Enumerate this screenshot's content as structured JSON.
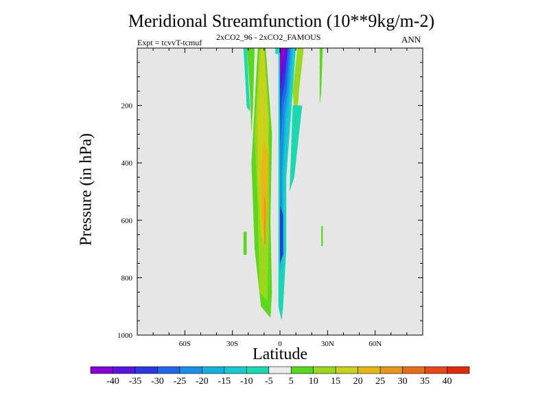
{
  "chart_data": {
    "type": "heatmap",
    "title": "Meridional Streamfunction (10**9kg/m-2)",
    "subtitle_left": "Expt = tcvvT-tcmuf",
    "subtitle_center": "2xCO2_96 - 2xCO2_FAMOUS",
    "subtitle_right": "ANN",
    "xlabel": "Latitude",
    "ylabel": "Pressure (in hPa)",
    "xlim": [
      -90,
      90
    ],
    "ylim": [
      0,
      1000
    ],
    "y_reversed": true,
    "x_ticks": [
      {
        "value": -60,
        "label": "60S"
      },
      {
        "value": -30,
        "label": "30S"
      },
      {
        "value": 0,
        "label": "0"
      },
      {
        "value": 30,
        "label": "30N"
      },
      {
        "value": 60,
        "label": "60N"
      }
    ],
    "y_ticks": [
      {
        "value": 200,
        "label": "200"
      },
      {
        "value": 400,
        "label": "400"
      },
      {
        "value": 600,
        "label": "600"
      },
      {
        "value": 800,
        "label": "800"
      },
      {
        "value": 1000,
        "label": "1000"
      }
    ],
    "background_color": "#e6e6e6",
    "colorbar": {
      "levels": [
        -40,
        -35,
        -30,
        -25,
        -20,
        -15,
        -10,
        -5,
        5,
        10,
        15,
        20,
        25,
        30,
        35,
        40
      ],
      "labels": [
        "-40",
        "-35",
        "-30",
        "-25",
        "-20",
        "-15",
        "-10",
        "-5",
        "5",
        "10",
        "15",
        "20",
        "25",
        "30",
        "35",
        "40"
      ],
      "colors": [
        "#8a00d4",
        "#5a14e0",
        "#2a3ae0",
        "#1f66e6",
        "#1a8ee6",
        "#16b0e0",
        "#1ac8d2",
        "#1ad8b0",
        "#ececec",
        "#5ad81e",
        "#9ad81e",
        "#c8d21a",
        "#e6b814",
        "#e6961a",
        "#e66e1a",
        "#e64a1a",
        "#e02a0a"
      ]
    },
    "regions": [
      {
        "name": "positive-cell-left",
        "level": 5,
        "points": [
          [
            -14,
            0
          ],
          [
            -9,
            0
          ],
          [
            -5,
            300
          ],
          [
            -6,
            600
          ],
          [
            -5,
            850
          ],
          [
            -6,
            940
          ],
          [
            -12,
            900
          ],
          [
            -16,
            700
          ],
          [
            -18,
            400
          ]
        ]
      },
      {
        "name": "positive-cell-inner",
        "level": 10,
        "points": [
          [
            -13,
            0
          ],
          [
            -10,
            50
          ],
          [
            -7,
            350
          ],
          [
            -7,
            650
          ],
          [
            -8,
            880
          ],
          [
            -13,
            850
          ],
          [
            -14,
            550
          ],
          [
            -16,
            300
          ]
        ]
      },
      {
        "name": "positive-cell-core",
        "level": 15,
        "points": [
          [
            -12,
            0
          ],
          [
            -10,
            0
          ],
          [
            -7,
            250
          ],
          [
            -8,
            500
          ],
          [
            -9,
            700
          ],
          [
            -12,
            650
          ],
          [
            -14,
            450
          ],
          [
            -14,
            200
          ]
        ]
      },
      {
        "name": "positive-cell-max",
        "level": 20,
        "points": [
          [
            -10,
            320
          ],
          [
            -7,
            380
          ],
          [
            -8,
            600
          ],
          [
            -10,
            680
          ],
          [
            -12,
            560
          ],
          [
            -12,
            420
          ]
        ]
      },
      {
        "name": "positive-cell-peak",
        "level": 25,
        "points": [
          [
            -10,
            500
          ],
          [
            -9,
            540
          ],
          [
            -9,
            680
          ],
          [
            -10,
            690
          ],
          [
            -10,
            600
          ]
        ]
      },
      {
        "name": "left-strip-a",
        "level": -5,
        "points": [
          [
            -23,
            0
          ],
          [
            -21,
            0
          ],
          [
            -20,
            100
          ],
          [
            -19,
            200
          ],
          [
            -19,
            220
          ],
          [
            -21,
            205
          ],
          [
            -22,
            100
          ]
        ]
      },
      {
        "name": "left-strip-b",
        "level": 5,
        "points": [
          [
            -21,
            0
          ],
          [
            -16,
            0
          ],
          [
            -17,
            200
          ],
          [
            -18,
            300
          ],
          [
            -19,
            150
          ]
        ]
      },
      {
        "name": "neg-cell-outer",
        "level": -5,
        "points": [
          [
            -1,
            0
          ],
          [
            10,
            0
          ],
          [
            8,
            150
          ],
          [
            6,
            300
          ],
          [
            4,
            450
          ],
          [
            4,
            700
          ],
          [
            2,
            900
          ],
          [
            1,
            950
          ],
          [
            -1,
            900
          ],
          [
            -1,
            600
          ],
          [
            -1,
            300
          ]
        ]
      },
      {
        "name": "neg-cell-1",
        "level": -10,
        "points": [
          [
            0,
            0
          ],
          [
            9,
            0
          ],
          [
            7,
            150
          ],
          [
            5,
            300
          ],
          [
            3,
            500
          ],
          [
            3,
            700
          ],
          [
            1,
            850
          ],
          [
            0,
            700
          ],
          [
            0,
            400
          ]
        ]
      },
      {
        "name": "neg-cell-2",
        "level": -15,
        "points": [
          [
            0,
            0
          ],
          [
            8,
            0
          ],
          [
            6,
            150
          ],
          [
            4,
            250
          ],
          [
            2,
            450
          ],
          [
            2,
            700
          ],
          [
            0,
            780
          ],
          [
            0,
            400
          ]
        ]
      },
      {
        "name": "neg-cell-3",
        "level": -20,
        "points": [
          [
            0,
            0
          ],
          [
            7,
            0
          ],
          [
            5,
            150
          ],
          [
            3,
            230
          ],
          [
            1,
            450
          ],
          [
            2,
            720
          ],
          [
            0,
            750
          ],
          [
            0,
            350
          ]
        ]
      },
      {
        "name": "neg-cell-4",
        "level": -25,
        "points": [
          [
            0,
            0
          ],
          [
            6,
            0
          ],
          [
            4,
            150
          ],
          [
            2,
            200
          ],
          [
            0,
            350
          ]
        ]
      },
      {
        "name": "neg-cell-5",
        "level": -30,
        "points": [
          [
            0,
            0
          ],
          [
            5,
            0
          ],
          [
            3,
            120
          ],
          [
            1,
            180
          ],
          [
            0,
            250
          ]
        ]
      },
      {
        "name": "neg-cell-6",
        "level": -35,
        "points": [
          [
            0,
            0
          ],
          [
            5,
            0
          ],
          [
            3,
            80
          ],
          [
            0,
            150
          ]
        ]
      },
      {
        "name": "neg-cell-core",
        "level": -40,
        "points": [
          [
            0,
            0
          ],
          [
            4,
            0
          ],
          [
            2,
            60
          ],
          [
            0,
            100
          ]
        ]
      },
      {
        "name": "neg-cell-lower",
        "level": -30,
        "points": [
          [
            0,
            550
          ],
          [
            2,
            580
          ],
          [
            2,
            720
          ],
          [
            0,
            750
          ]
        ]
      },
      {
        "name": "upper-neg-strip",
        "level": -5,
        "points": [
          [
            -3,
            0
          ],
          [
            -1,
            0
          ],
          [
            -1,
            20
          ],
          [
            -3,
            20
          ]
        ]
      },
      {
        "name": "pos-strip-right",
        "level": 10,
        "points": [
          [
            11,
            0
          ],
          [
            15,
            0
          ],
          [
            12,
            150
          ],
          [
            10,
            300
          ],
          [
            8,
            150
          ]
        ]
      },
      {
        "name": "neg-right-band",
        "level": -5,
        "points": [
          [
            8,
            200
          ],
          [
            14,
            200
          ],
          [
            12,
            300
          ],
          [
            9,
            450
          ],
          [
            6,
            500
          ]
        ]
      },
      {
        "name": "right-green-strip",
        "level": 5,
        "points": [
          [
            25,
            0
          ],
          [
            27,
            0
          ],
          [
            26,
            150
          ],
          [
            25,
            200
          ]
        ]
      },
      {
        "name": "small-blob-left",
        "level": 5,
        "points": [
          [
            -23,
            640
          ],
          [
            -21,
            640
          ],
          [
            -21,
            720
          ],
          [
            -23,
            720
          ]
        ]
      },
      {
        "name": "small-blob-right",
        "level": 5,
        "points": [
          [
            26,
            620
          ],
          [
            27,
            620
          ],
          [
            27,
            690
          ],
          [
            26,
            690
          ]
        ]
      }
    ]
  }
}
